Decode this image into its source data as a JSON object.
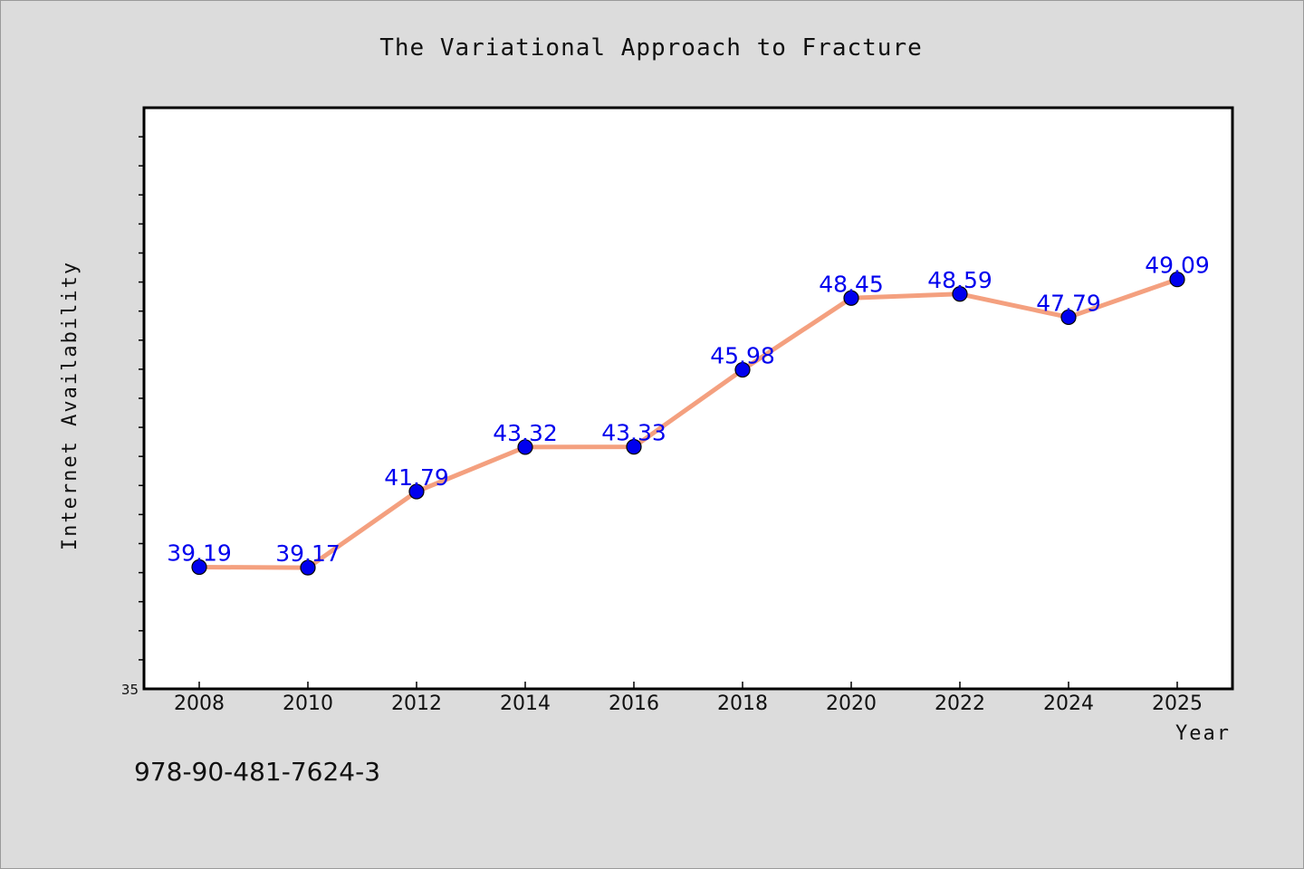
{
  "footer": {
    "isbn": "978-90-481-7624-3"
  },
  "colors": {
    "line": "#f4a07f",
    "marker": "#0000ee",
    "label": "#0000ee",
    "background": "#dcdcdc",
    "plot_background": "#ffffff"
  },
  "chart_data": {
    "type": "line",
    "title": "The Variational Approach to Fracture",
    "xlabel": "Year",
    "ylabel": "Internet Availability",
    "x": [
      "2008",
      "2010",
      "2012",
      "2014",
      "2016",
      "2018",
      "2020",
      "2022",
      "2024",
      "2025"
    ],
    "series": [
      {
        "values": [
          39.19,
          39.17,
          41.79,
          43.32,
          43.33,
          45.98,
          48.45,
          48.59,
          47.79,
          49.09
        ]
      }
    ],
    "data_labels": [
      "39.19",
      "39.17",
      "41.79",
      "43.32",
      "43.33",
      "45.98",
      "48.45",
      "48.59",
      "47.79",
      "49.09"
    ],
    "ylim": [
      35,
      55
    ],
    "yticks_labeled": [
      "35"
    ],
    "grid": false,
    "legend": "none"
  }
}
